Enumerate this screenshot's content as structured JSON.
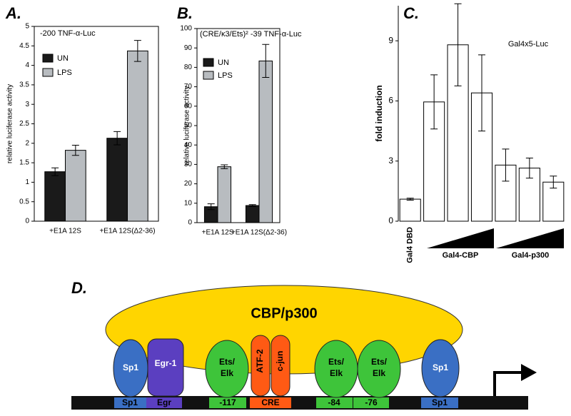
{
  "chart_data": [
    {
      "type": "bar",
      "panel_label": "A.",
      "title": "-200 TNF-α-Luc",
      "ylabel": "relative luciferase activity",
      "categories": [
        "+E1A 12S",
        "+E1A 12S(Δ2-36)"
      ],
      "series": [
        {
          "name": "UN",
          "color": "#1a1a1a",
          "values": [
            1.27,
            2.13
          ],
          "errors": [
            0.1,
            0.17
          ]
        },
        {
          "name": "LPS",
          "color": "#b8bcc0",
          "values": [
            1.82,
            4.37
          ],
          "errors": [
            0.13,
            0.27
          ]
        }
      ],
      "ylim": [
        0,
        5
      ],
      "yticks": [
        0,
        0.5,
        1,
        1.5,
        2,
        2.5,
        3,
        3.5,
        4,
        4.5,
        5
      ]
    },
    {
      "type": "bar",
      "panel_label": "B.",
      "title": "(CRE/κ3/Ets)² -39 TNF-α-Luc",
      "ylabel": "relative luciferase activity",
      "categories": [
        "+E1A 12S",
        "+E1A 12S(Δ2-36)"
      ],
      "series": [
        {
          "name": "UN",
          "color": "#1a1a1a",
          "values": [
            8.2,
            8.8
          ],
          "errors": [
            1.5,
            0.5
          ]
        },
        {
          "name": "LPS",
          "color": "#b8bcc0",
          "values": [
            28.8,
            83.3
          ],
          "errors": [
            1,
            8.5
          ]
        }
      ],
      "ylim": [
        0,
        100
      ],
      "yticks": [
        0,
        10,
        20,
        30,
        40,
        50,
        60,
        70,
        80,
        90,
        100
      ]
    },
    {
      "type": "bar",
      "panel_label": "C.",
      "title": "Gal4x5-Luc",
      "ylabel": "fold induction",
      "categories": [
        "Gal4 DBD",
        null,
        null,
        null,
        null,
        null,
        null
      ],
      "group_labels": [
        "Gal4-CBP",
        "Gal4-p300"
      ],
      "series": [
        {
          "color": "#ffffff",
          "values": [
            1.1,
            5.95,
            8.8,
            6.4,
            2.8,
            2.65,
            1.95
          ],
          "errors": [
            0.05,
            1.35,
            2.05,
            1.9,
            0.8,
            0.5,
            0.3
          ]
        }
      ],
      "ylim": [
        0,
        10.75
      ],
      "yticks": [
        0,
        3,
        6,
        9
      ]
    }
  ],
  "panel_d": {
    "label": "D.",
    "complex": "CBP/p300",
    "proteins": [
      [
        "Sp1"
      ],
      [
        "Egr-1"
      ],
      [
        "Ets/",
        "Elk"
      ],
      [
        "ATF-2"
      ],
      [
        "c-jun"
      ],
      [
        "Ets/",
        "Elk"
      ],
      [
        "Ets/",
        "Elk"
      ],
      [
        "Sp1"
      ]
    ],
    "sites": [
      "Sp1",
      "Egr",
      "-117",
      "CRE",
      "-84",
      "-76",
      "Sp1"
    ]
  }
}
